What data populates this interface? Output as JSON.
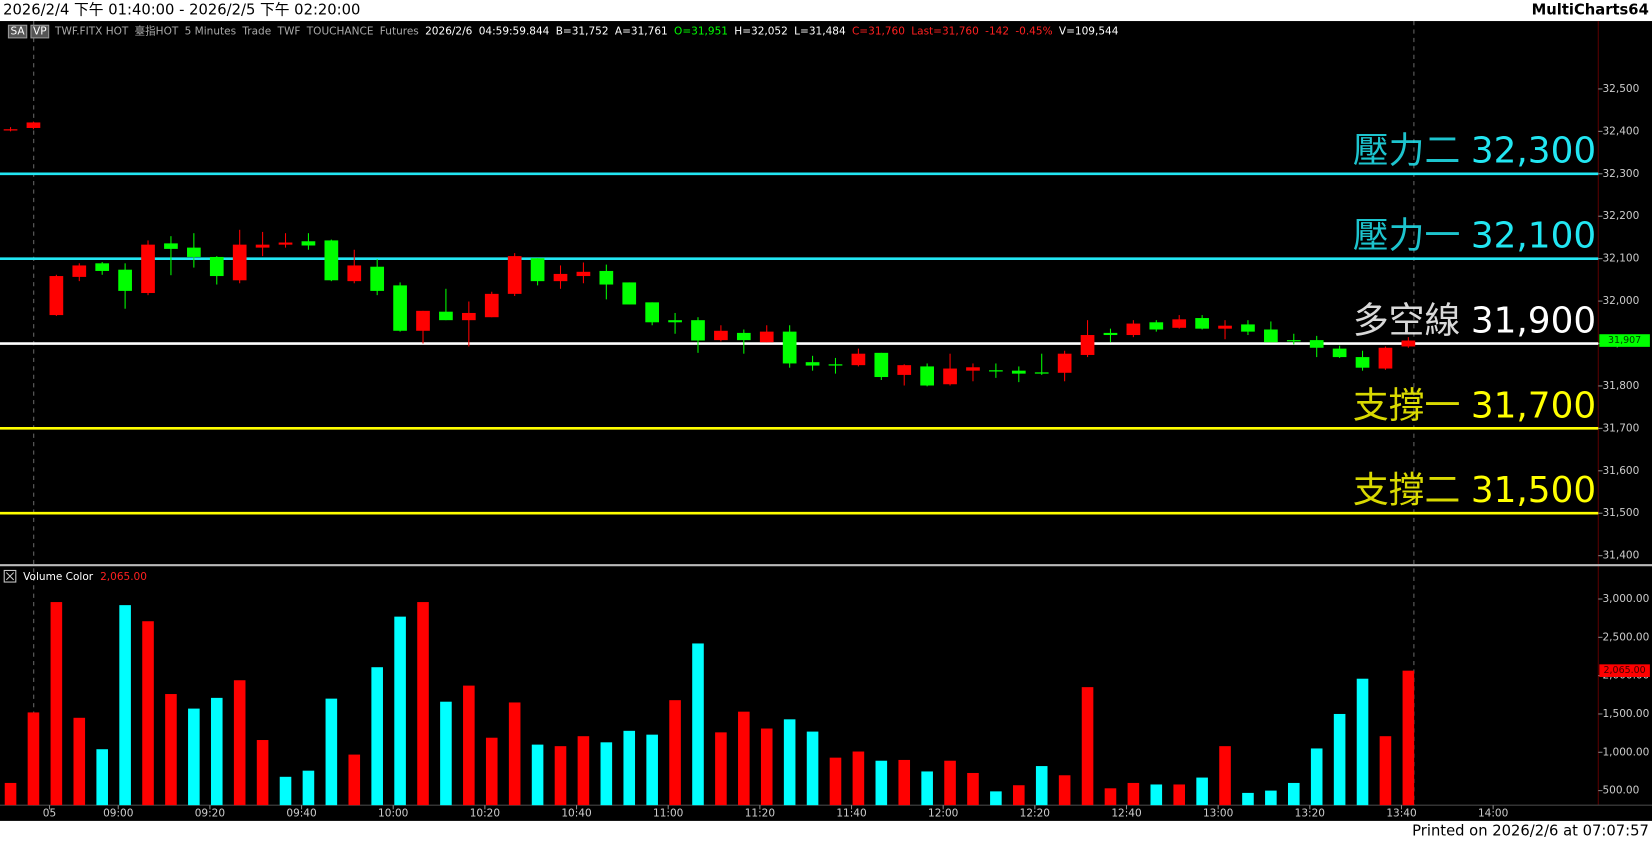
{
  "header": {
    "range": "2026/2/4 下午 01:40:00 - 2026/2/5 下午 02:20:00",
    "app": "MultiCharts64"
  },
  "toolbar": [
    {
      "text": "SA",
      "color": "#ffffff"
    },
    {
      "text": "VP",
      "color": "#ffffff"
    },
    {
      "text": "TWF.FITX HOT",
      "color": "#aaaaaa"
    },
    {
      "text": "臺指HOT",
      "color": "#aaaaaa"
    },
    {
      "text": "5 Minutes",
      "color": "#aaaaaa"
    },
    {
      "text": "Trade",
      "color": "#aaaaaa"
    },
    {
      "text": "TWF",
      "color": "#aaaaaa"
    },
    {
      "text": "TOUCHANCE",
      "color": "#aaaaaa"
    },
    {
      "text": "Futures",
      "color": "#aaaaaa"
    },
    {
      "text": "2026/2/6",
      "color": "#ffffff"
    },
    {
      "text": "04:59:59.844",
      "color": "#ffffff"
    },
    {
      "text": "B=31,752",
      "color": "#ffffff"
    },
    {
      "text": "A=31,761",
      "color": "#ffffff"
    },
    {
      "text": "O=31,951",
      "color": "#00ff00"
    },
    {
      "text": "H=32,052",
      "color": "#ffffff"
    },
    {
      "text": "L=31,484",
      "color": "#ffffff"
    },
    {
      "text": "C=31,760",
      "color": "#ff2020"
    },
    {
      "text": "Last=31,760",
      "color": "#ff2020"
    },
    {
      "text": "-142",
      "color": "#ff2020"
    },
    {
      "text": "-0.45%",
      "color": "#ff2020"
    },
    {
      "text": "V=109,544",
      "color": "#ffffff"
    }
  ],
  "footer": "Printed on 2026/2/6 at 07:07:57",
  "chart_data": [
    {
      "type": "candlestick",
      "categories": [
        null,
        null,
        "05",
        null,
        null,
        "09:00",
        null,
        null,
        null,
        "09:20",
        null,
        null,
        null,
        "09:40",
        null,
        null,
        null,
        "10:00",
        null,
        null,
        null,
        "10:20",
        null,
        null,
        null,
        "10:40",
        null,
        null,
        null,
        "11:00",
        null,
        null,
        null,
        "11:20",
        null,
        null,
        null,
        "11:40",
        null,
        null,
        null,
        "12:00",
        null,
        null,
        null,
        "12:20",
        null,
        null,
        null,
        "12:40",
        null,
        null,
        null,
        "13:00",
        null,
        null,
        null,
        "13:20",
        null,
        null,
        null,
        "13:40",
        null,
        null,
        null,
        "14:00"
      ],
      "open": [
        32405,
        32408,
        31967,
        32057,
        32089,
        32074,
        32019,
        32136,
        32126,
        32104,
        32049,
        32126,
        32133,
        32141,
        32143,
        32047,
        32081,
        32037,
        31930,
        31975,
        31955,
        31962,
        32017,
        32101,
        32047,
        32059,
        32071,
        32044,
        31997,
        31955,
        31955,
        31908,
        31925,
        31903,
        31928,
        31856,
        31851,
        31849,
        31878,
        31826,
        31846,
        31804,
        31836,
        31837,
        31836,
        31832,
        31831,
        31873,
        31925,
        31920,
        31950,
        31937,
        31960,
        31935,
        31945,
        31933,
        31908,
        31908,
        31888,
        31868,
        31841,
        31893,
        null,
        null,
        null,
        null
      ],
      "high": [
        32410,
        32423,
        32062,
        32089,
        32092,
        32089,
        32143,
        32153,
        32160,
        32106,
        32168,
        32163,
        32160,
        32160,
        32145,
        32121,
        32099,
        32044,
        31977,
        32029,
        31999,
        32022,
        32113,
        32101,
        32084,
        32091,
        32086,
        32044,
        31997,
        31972,
        31962,
        31943,
        31933,
        31943,
        31943,
        31871,
        31866,
        31888,
        31878,
        31851,
        31853,
        31876,
        31853,
        31853,
        31846,
        31876,
        31883,
        31955,
        31935,
        31955,
        31955,
        31967,
        31967,
        31955,
        31955,
        31952,
        31923,
        31918,
        31895,
        31883,
        31893,
        31915,
        null,
        null,
        null,
        null
      ],
      "low": [
        32400,
        32405,
        31965,
        32047,
        32062,
        31982,
        32014,
        32061,
        32079,
        32039,
        32042,
        32106,
        32126,
        32121,
        32047,
        32042,
        32014,
        31928,
        31900,
        31955,
        31893,
        31962,
        32012,
        32037,
        32029,
        32042,
        32004,
        31992,
        31943,
        31923,
        31878,
        31905,
        31876,
        31903,
        31843,
        31836,
        31829,
        31846,
        31814,
        31801,
        31799,
        31801,
        31811,
        31819,
        31809,
        31826,
        31811,
        31868,
        31903,
        31915,
        31928,
        31935,
        31933,
        31910,
        31920,
        31903,
        31898,
        31868,
        31866,
        31836,
        31838,
        31890,
        null,
        null,
        null,
        null
      ],
      "close": [
        32405,
        32421,
        32059,
        32084,
        32071,
        32024,
        32133,
        32123,
        32104,
        32059,
        32133,
        32133,
        32138,
        32131,
        32049,
        32084,
        32024,
        31930,
        31977,
        31955,
        31972,
        32017,
        32106,
        32047,
        32064,
        32069,
        32039,
        31992,
        31950,
        31950,
        31907,
        31930,
        31908,
        31928,
        31853,
        31848,
        31849,
        31876,
        31821,
        31849,
        31801,
        31841,
        31844,
        31836,
        31829,
        31829,
        31876,
        31920,
        31920,
        31947,
        31933,
        31957,
        31935,
        31942,
        31928,
        31903,
        31905,
        31890,
        31868,
        31843,
        31890,
        31907,
        null,
        null,
        null,
        null
      ],
      "up_color": "#ff0000",
      "down_color": "#00ff00",
      "last_label": "31,907",
      "last_color": "#00ff00",
      "ylim": [
        31380,
        32660
      ],
      "yticks": [
        {
          "value": 31400,
          "label": "31,400"
        },
        {
          "value": 31500,
          "label": "31,500"
        },
        {
          "value": 31600,
          "label": "31,600"
        },
        {
          "value": 31700,
          "label": "31,700"
        },
        {
          "value": 31800,
          "label": "31,800"
        },
        {
          "value": 31900,
          "label": "31,900"
        },
        {
          "value": 32000,
          "label": "32,000"
        },
        {
          "value": 32100,
          "label": "32,100"
        },
        {
          "value": 32200,
          "label": "32,200"
        },
        {
          "value": 32300,
          "label": "32,300"
        },
        {
          "value": 32400,
          "label": "32,400"
        },
        {
          "value": 32500,
          "label": "32,500"
        }
      ],
      "lines": [
        {
          "label": "壓力二",
          "value": 32300,
          "value_label": "32,300",
          "color": "#22e6f2"
        },
        {
          "label": "壓力一",
          "value": 32100,
          "value_label": "32,100",
          "color": "#22e6f2"
        },
        {
          "label": "多空線",
          "value": 31900,
          "value_label": "31,900",
          "color": "#ffffff"
        },
        {
          "label": "支撐一",
          "value": 31700,
          "value_label": "31,700",
          "color": "#ffff00"
        },
        {
          "label": "支撐二",
          "value": 31500,
          "value_label": "31,500",
          "color": "#ffff00"
        }
      ]
    },
    {
      "type": "bar",
      "title": "Volume Color",
      "last_label": "2,065.00",
      "values": [
        600,
        1520,
        2960,
        1450,
        1040,
        2920,
        2710,
        1760,
        1570,
        1710,
        1940,
        1160,
        680,
        760,
        1700,
        970,
        2110,
        2770,
        2960,
        1660,
        1870,
        1190,
        1650,
        1100,
        1080,
        1210,
        1130,
        1280,
        1230,
        1680,
        2420,
        1260,
        1530,
        1310,
        1430,
        1270,
        930,
        1010,
        890,
        900,
        750,
        890,
        730,
        490,
        570,
        820,
        700,
        1850,
        530,
        600,
        580,
        580,
        670,
        1080,
        470,
        500,
        600,
        1050,
        1500,
        1960,
        1210,
        2065,
        null,
        null,
        null,
        null
      ],
      "colors": [
        "#ff0000",
        "#ff0000",
        "#ff0000",
        "#ff0000",
        "#00ffff",
        "#00ffff",
        "#ff0000",
        "#ff0000",
        "#00ffff",
        "#00ffff",
        "#ff0000",
        "#ff0000",
        "#00ffff",
        "#00ffff",
        "#00ffff",
        "#ff0000",
        "#00ffff",
        "#00ffff",
        "#ff0000",
        "#00ffff",
        "#ff0000",
        "#ff0000",
        "#ff0000",
        "#00ffff",
        "#ff0000",
        "#ff0000",
        "#00ffff",
        "#00ffff",
        "#00ffff",
        "#ff0000",
        "#00ffff",
        "#ff0000",
        "#ff0000",
        "#ff0000",
        "#00ffff",
        "#00ffff",
        "#ff0000",
        "#ff0000",
        "#00ffff",
        "#ff0000",
        "#00ffff",
        "#ff0000",
        "#ff0000",
        "#00ffff",
        "#ff0000",
        "#00ffff",
        "#ff0000",
        "#ff0000",
        "#ff0000",
        "#ff0000",
        "#00ffff",
        "#ff0000",
        "#00ffff",
        "#ff0000",
        "#00ffff",
        "#00ffff",
        "#00ffff",
        "#00ffff",
        "#00ffff",
        "#00ffff",
        "#ff0000",
        "#ff0000",
        null,
        null,
        null,
        null
      ],
      "last_color": "#ff0000",
      "ylim": [
        310,
        3400
      ],
      "yticks": [
        {
          "value": 500,
          "label": "500.00"
        },
        {
          "value": 1000,
          "label": "1,000.00"
        },
        {
          "value": 1500,
          "label": "1,500.00"
        },
        {
          "value": 2000,
          "label": "2,000.00"
        },
        {
          "value": 2500,
          "label": "2,500.00"
        },
        {
          "value": 3000,
          "label": "3,000.00"
        }
      ]
    }
  ]
}
